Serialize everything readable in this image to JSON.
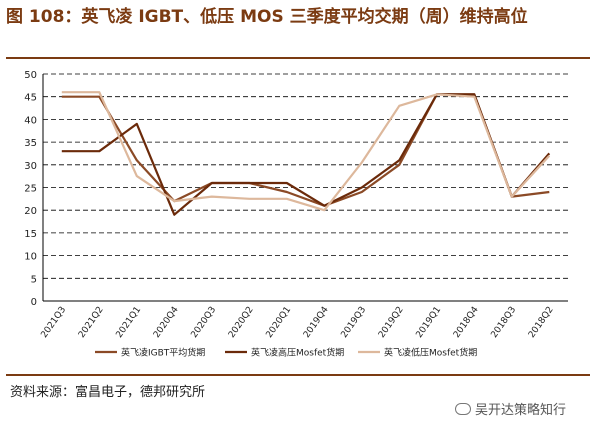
{
  "title": "图 108：英飞凌 IGBT、低压 MOS 三季度平均交期（周）维持高位",
  "source": "资料来源：富昌电子，德邦研究所",
  "watermark": "吴开达策略知行",
  "chart_data": {
    "type": "line",
    "categories": [
      "2021Q3",
      "2021Q2",
      "2021Q1",
      "2020Q4",
      "2020Q3",
      "2020Q2",
      "2020Q1",
      "2019Q4",
      "2019Q3",
      "2019Q2",
      "2019Q1",
      "2018Q4",
      "2018Q3",
      "2018Q2"
    ],
    "ylim": [
      0,
      50
    ],
    "yticks": [
      0,
      5,
      10,
      15,
      20,
      25,
      30,
      35,
      40,
      45,
      50
    ],
    "grid": true,
    "legend_position": "bottom",
    "series": [
      {
        "name": "英飞凌IGBT平均货期",
        "color": "#8b4a26",
        "values": [
          45,
          45,
          31,
          22,
          26,
          26,
          24,
          21,
          24,
          30,
          45.5,
          45.5,
          23,
          24
        ]
      },
      {
        "name": "英飞凌高压Mosfet货期",
        "color": "#6b2a0a",
        "values": [
          33,
          33,
          39,
          19,
          26,
          26,
          26,
          21,
          25,
          31,
          45.5,
          45.5,
          23,
          32.5
        ]
      },
      {
        "name": "英飞凌低压Mosfet货期",
        "color": "#ddb89c",
        "values": [
          46,
          46,
          27.5,
          22,
          23,
          22.5,
          22.5,
          20,
          30.5,
          43,
          45.5,
          45,
          23,
          32
        ]
      }
    ]
  }
}
